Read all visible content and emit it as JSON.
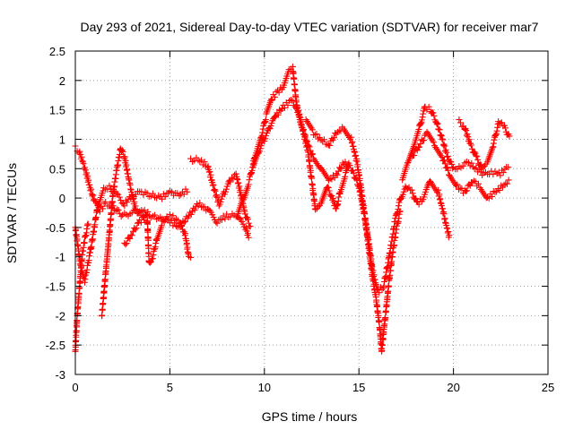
{
  "chart_data": {
    "type": "scatter",
    "title": "Day 293 of 2021, Sidereal Day-to-day VTEC variation (SDTVAR) for receiver mar7",
    "xlabel": "GPS time / hours",
    "ylabel": "SDTVAR / TECUs",
    "xlim": [
      0,
      25
    ],
    "ylim": [
      -3,
      2.5
    ],
    "x_ticks": [
      0,
      5,
      10,
      15,
      20,
      25
    ],
    "y_ticks": [
      -3,
      -2.5,
      -2,
      -1.5,
      -1,
      -0.5,
      0,
      0.5,
      1,
      1.5,
      2,
      2.5
    ],
    "grid": true,
    "marker": "+",
    "series_color": "#ff0000",
    "tracks": [
      {
        "name": "track-a",
        "points": [
          [
            0.0,
            0.85
          ],
          [
            0.2,
            0.8
          ],
          [
            0.4,
            0.6
          ],
          [
            0.6,
            0.4
          ],
          [
            0.8,
            0.15
          ],
          [
            1.0,
            -0.05
          ],
          [
            1.3,
            -0.2
          ],
          [
            1.6,
            -0.1
          ],
          [
            2.0,
            -0.15
          ],
          [
            2.5,
            -0.3
          ],
          [
            3.0,
            -0.25
          ],
          [
            3.5,
            -0.2
          ],
          [
            4.0,
            -0.3
          ],
          [
            4.5,
            -0.35
          ],
          [
            5.0,
            -0.4
          ],
          [
            5.5,
            -0.5
          ],
          [
            6.0,
            -0.3
          ],
          [
            6.5,
            -0.1
          ],
          [
            7.0,
            -0.2
          ],
          [
            7.5,
            -0.4
          ],
          [
            8.0,
            -0.3
          ],
          [
            8.5,
            -0.3
          ],
          [
            9.0,
            -0.5
          ],
          [
            9.2,
            -0.7
          ]
        ]
      },
      {
        "name": "track-b",
        "points": [
          [
            0.0,
            -0.5
          ],
          [
            0.3,
            -1.2
          ],
          [
            0.5,
            -1.4
          ],
          [
            0.8,
            -0.9
          ],
          [
            1.0,
            -0.5
          ],
          [
            1.2,
            -0.1
          ],
          [
            1.5,
            0.15
          ],
          [
            1.8,
            0.2
          ],
          [
            2.2,
            0.05
          ],
          [
            2.6,
            -0.1
          ],
          [
            3.0,
            0.05
          ],
          [
            3.5,
            0.1
          ],
          [
            4.0,
            0.05
          ],
          [
            4.5,
            0.0
          ],
          [
            5.0,
            0.1
          ],
          [
            5.5,
            0.05
          ],
          [
            6.0,
            0.15
          ]
        ]
      },
      {
        "name": "track-c",
        "points": [
          [
            0.0,
            -2.6
          ],
          [
            0.1,
            -2.0
          ],
          [
            0.2,
            -1.6
          ],
          [
            0.35,
            -1.0
          ],
          [
            0.5,
            -0.7
          ],
          [
            0.7,
            -0.4
          ]
        ]
      },
      {
        "name": "track-d",
        "points": [
          [
            1.4,
            -2.0
          ],
          [
            1.6,
            -1.3
          ],
          [
            1.8,
            -0.6
          ],
          [
            2.0,
            0.1
          ],
          [
            2.2,
            0.5
          ],
          [
            2.4,
            0.85
          ],
          [
            2.6,
            0.7
          ],
          [
            2.9,
            0.2
          ],
          [
            3.2,
            -0.2
          ],
          [
            3.5,
            -0.3
          ],
          [
            3.8,
            -0.25
          ]
        ]
      },
      {
        "name": "track-e",
        "points": [
          [
            2.6,
            -0.8
          ],
          [
            3.0,
            -0.6
          ],
          [
            3.4,
            -0.4
          ],
          [
            3.8,
            -0.3
          ],
          [
            3.9,
            -1.1
          ],
          [
            4.1,
            -1.0
          ],
          [
            4.3,
            -0.7
          ],
          [
            4.6,
            -0.4
          ],
          [
            5.0,
            -0.3
          ],
          [
            5.5,
            -0.4
          ],
          [
            5.8,
            -0.6
          ],
          [
            6.0,
            -1.0
          ],
          [
            6.2,
            -1.05
          ]
        ]
      },
      {
        "name": "track-f",
        "points": [
          [
            6.1,
            0.65
          ],
          [
            6.5,
            0.65
          ],
          [
            7.0,
            0.55
          ],
          [
            7.3,
            0.2
          ],
          [
            7.6,
            -0.1
          ],
          [
            7.9,
            0.1
          ],
          [
            8.2,
            0.3
          ],
          [
            8.5,
            0.4
          ],
          [
            8.8,
            0.0
          ],
          [
            9.0,
            -0.3
          ],
          [
            9.3,
            -0.5
          ]
        ]
      },
      {
        "name": "track-g",
        "points": [
          [
            8.6,
            -0.3
          ],
          [
            8.9,
            0.0
          ],
          [
            9.2,
            0.3
          ],
          [
            9.5,
            0.7
          ],
          [
            9.8,
            1.0
          ],
          [
            10.1,
            1.4
          ],
          [
            10.4,
            1.7
          ],
          [
            10.7,
            1.8
          ],
          [
            11.0,
            1.9
          ],
          [
            11.3,
            2.15
          ],
          [
            11.5,
            2.2
          ],
          [
            11.7,
            1.6
          ],
          [
            12.0,
            1.2
          ],
          [
            12.3,
            0.8
          ],
          [
            12.5,
            0.3
          ],
          [
            12.7,
            -0.2
          ],
          [
            13.0,
            -0.1
          ],
          [
            13.3,
            0.2
          ],
          [
            13.6,
            0.0
          ],
          [
            13.8,
            -0.2
          ],
          [
            14.0,
            0.1
          ],
          [
            14.3,
            0.4
          ],
          [
            14.5,
            0.6
          ]
        ]
      },
      {
        "name": "track-h",
        "points": [
          [
            9.4,
            0.5
          ],
          [
            9.7,
            0.8
          ],
          [
            10.0,
            1.0
          ],
          [
            10.3,
            1.2
          ],
          [
            10.6,
            1.4
          ],
          [
            11.0,
            1.55
          ],
          [
            11.4,
            1.65
          ],
          [
            11.7,
            1.55
          ],
          [
            12.0,
            1.2
          ],
          [
            12.3,
            0.9
          ],
          [
            12.6,
            0.7
          ],
          [
            13.0,
            0.5
          ],
          [
            13.4,
            0.3
          ],
          [
            13.8,
            0.4
          ],
          [
            14.2,
            0.6
          ],
          [
            14.6,
            0.5
          ],
          [
            15.0,
            0.2
          ],
          [
            15.3,
            -0.3
          ],
          [
            15.5,
            -0.7
          ],
          [
            15.7,
            -1.2
          ],
          [
            16.0,
            -1.6
          ],
          [
            16.3,
            -1.5
          ],
          [
            16.6,
            -1.0
          ],
          [
            16.9,
            -0.4
          ],
          [
            17.2,
            0.0
          ],
          [
            17.5,
            0.2
          ],
          [
            17.8,
            0.1
          ],
          [
            18.1,
            -0.1
          ],
          [
            18.4,
            0.0
          ],
          [
            18.8,
            0.3
          ],
          [
            19.2,
            0.1
          ],
          [
            19.5,
            -0.3
          ],
          [
            19.8,
            -0.7
          ]
        ]
      },
      {
        "name": "track-i",
        "points": [
          [
            12.2,
            1.3
          ],
          [
            12.6,
            1.1
          ],
          [
            13.0,
            1.0
          ],
          [
            13.4,
            0.9
          ],
          [
            13.8,
            1.1
          ],
          [
            14.2,
            1.2
          ],
          [
            14.6,
            1.0
          ],
          [
            14.9,
            0.6
          ],
          [
            15.1,
            0.2
          ],
          [
            15.3,
            -0.3
          ],
          [
            15.5,
            -0.8
          ],
          [
            15.7,
            -1.3
          ],
          [
            15.9,
            -1.7
          ],
          [
            16.1,
            -2.2
          ],
          [
            16.2,
            -2.6
          ],
          [
            16.4,
            -2.0
          ],
          [
            16.6,
            -1.4
          ],
          [
            16.8,
            -0.9
          ],
          [
            17.0,
            -0.5
          ],
          [
            17.2,
            -0.2
          ]
        ]
      },
      {
        "name": "track-j",
        "points": [
          [
            17.3,
            0.3
          ],
          [
            17.6,
            0.6
          ],
          [
            17.9,
            0.9
          ],
          [
            18.2,
            1.2
          ],
          [
            18.5,
            1.55
          ],
          [
            18.8,
            1.5
          ],
          [
            19.1,
            1.3
          ],
          [
            19.4,
            1.0
          ],
          [
            19.7,
            0.7
          ],
          [
            20.0,
            0.5
          ],
          [
            20.4,
            0.55
          ],
          [
            20.8,
            0.6
          ],
          [
            21.2,
            0.5
          ],
          [
            21.6,
            0.4
          ],
          [
            22.0,
            0.45
          ],
          [
            22.4,
            0.4
          ],
          [
            22.8,
            0.5
          ],
          [
            23.0,
            0.55
          ]
        ]
      },
      {
        "name": "track-k",
        "points": [
          [
            17.8,
            0.7
          ],
          [
            18.2,
            0.9
          ],
          [
            18.6,
            1.1
          ],
          [
            19.0,
            0.9
          ],
          [
            19.4,
            0.7
          ],
          [
            19.8,
            0.4
          ],
          [
            20.2,
            0.2
          ],
          [
            20.6,
            0.1
          ],
          [
            21.0,
            0.3
          ],
          [
            21.4,
            0.2
          ],
          [
            21.8,
            0.0
          ],
          [
            22.2,
            0.1
          ],
          [
            22.6,
            0.2
          ],
          [
            23.0,
            0.3
          ]
        ]
      },
      {
        "name": "track-l",
        "points": [
          [
            20.3,
            1.3
          ],
          [
            20.6,
            1.2
          ],
          [
            20.9,
            0.9
          ],
          [
            21.2,
            0.7
          ],
          [
            21.5,
            0.5
          ],
          [
            21.8,
            0.6
          ],
          [
            22.1,
            0.9
          ],
          [
            22.4,
            1.3
          ],
          [
            22.7,
            1.2
          ],
          [
            23.0,
            1.0
          ]
        ]
      }
    ]
  }
}
